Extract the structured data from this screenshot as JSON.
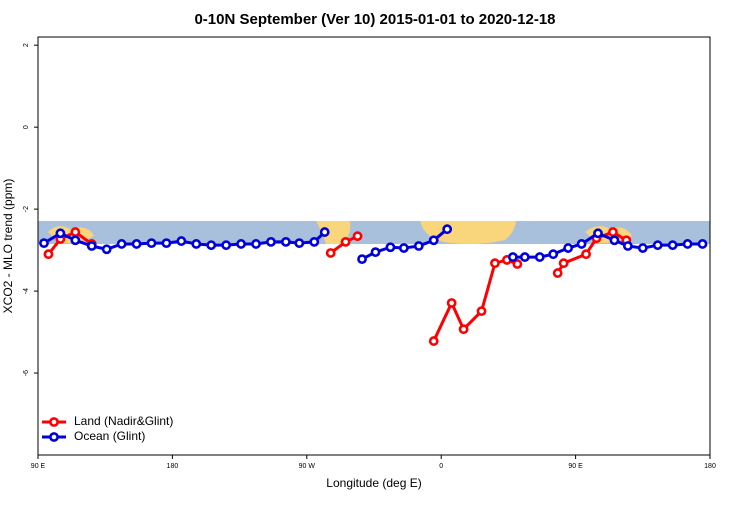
{
  "chart_data": {
    "type": "line",
    "title": "0-10N September (Ver 10)   2015-01-01 to 2020-12-18",
    "x_label": "Longitude (deg E)",
    "y_label": "XCO2 - MLO trend (ppm)",
    "xlim": [
      90,
      540
    ],
    "ylim": [
      -8,
      2.2
    ],
    "xticks": [
      {
        "value": 90,
        "label": "90 E"
      },
      {
        "value": 180,
        "label": "180"
      },
      {
        "value": 270,
        "label": "90 W"
      },
      {
        "value": 360,
        "label": "0"
      },
      {
        "value": 450,
        "label": "90 E"
      },
      {
        "value": 540,
        "label": "180"
      }
    ],
    "yticks": [
      2,
      0,
      -2,
      -4,
      -6
    ],
    "legend": "bottom-left",
    "series": [
      {
        "name": "Land (Nadir&Glint)",
        "color": "#ff0000",
        "x": [
          97,
          105,
          115,
          126,
          200,
          286,
          296,
          304,
          330,
          355,
          367,
          375,
          387,
          396,
          404,
          411,
          425,
          438,
          442,
          457,
          464,
          475,
          484
        ],
        "values": [
          -3.1,
          -2.73,
          -2.56,
          -2.85,
          null,
          -3.07,
          -2.8,
          -2.66,
          null,
          -5.22,
          -4.29,
          -4.93,
          -4.49,
          -3.32,
          -3.24,
          -3.34,
          null,
          -3.56,
          -3.32,
          -3.1,
          -2.71,
          -2.56,
          -2.76
        ]
      },
      {
        "name": "Ocean (Glint)",
        "color": "#0000dd",
        "x": [
          94,
          105,
          115,
          126,
          136,
          146,
          156,
          166,
          176,
          186,
          196,
          206,
          216,
          226,
          236,
          246,
          256,
          265,
          275,
          282,
          295,
          307,
          316,
          326,
          335,
          345,
          355,
          364,
          390,
          408,
          416,
          426,
          435,
          445,
          454,
          465,
          476,
          485,
          495,
          505,
          515,
          525,
          535
        ],
        "values": [
          -2.83,
          -2.59,
          -2.76,
          -2.9,
          -2.98,
          -2.85,
          -2.85,
          -2.83,
          -2.83,
          -2.78,
          -2.85,
          -2.88,
          -2.88,
          -2.85,
          -2.85,
          -2.8,
          -2.8,
          -2.83,
          -2.8,
          -2.56,
          null,
          -3.22,
          -3.05,
          -2.93,
          -2.95,
          -2.9,
          -2.76,
          -2.49,
          null,
          -3.17,
          -3.17,
          -3.17,
          -3.1,
          -2.95,
          -2.85,
          -2.59,
          -2.76,
          -2.9,
          -2.95,
          -2.88,
          -2.88,
          -2.85,
          -2.85
        ]
      }
    ]
  }
}
